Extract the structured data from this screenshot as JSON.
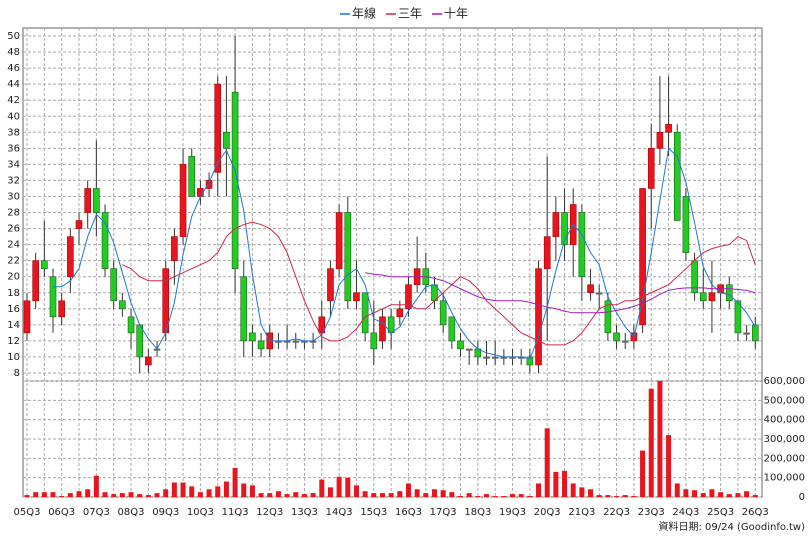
{
  "chart_data": {
    "type": "candlestick",
    "legend": [
      "年線",
      "三年",
      "十年"
    ],
    "note": "資料日期: 09/24 (Goodinfo.tw)",
    "categories": [
      "05Q3",
      null,
      null,
      null,
      "06Q3",
      null,
      null,
      null,
      "07Q3",
      null,
      null,
      null,
      "08Q3",
      null,
      null,
      null,
      "09Q3",
      null,
      null,
      null,
      "10Q3",
      null,
      null,
      null,
      "11Q3",
      null,
      null,
      null,
      "12Q3",
      null,
      null,
      null,
      "13Q3",
      null,
      null,
      null,
      "14Q3",
      null,
      null,
      null,
      "15Q3",
      null,
      null,
      null,
      "16Q3",
      null,
      null,
      null,
      "17Q3",
      null,
      null,
      null,
      "18Q3",
      null,
      null,
      null,
      "19Q3",
      null,
      null,
      null,
      "20Q3",
      null,
      null,
      null,
      "21Q3",
      null,
      null,
      null,
      "22Q3",
      null,
      null,
      null,
      "23Q3",
      null,
      null,
      null,
      "24Q3",
      null,
      null,
      null,
      "25Q3",
      null,
      null,
      null,
      "26Q3"
    ],
    "open": [
      13,
      17,
      22,
      20,
      15,
      20,
      26,
      28,
      31,
      28,
      21,
      17,
      15,
      14,
      9,
      11,
      13,
      22,
      25,
      35,
      30,
      31,
      33,
      38,
      43,
      20,
      13,
      12,
      11,
      12,
      12,
      12,
      12,
      12,
      13,
      17,
      21,
      28,
      17,
      18,
      13,
      12,
      15,
      15,
      16,
      19,
      21,
      19,
      17,
      15,
      12,
      11,
      11,
      10,
      10,
      10,
      10,
      10,
      10,
      9,
      21,
      25,
      28,
      24,
      28,
      18,
      18,
      17,
      13,
      12,
      12,
      14,
      31,
      36,
      38,
      38,
      30,
      22,
      18,
      17,
      18,
      19,
      17,
      13,
      14
    ],
    "high": [
      18,
      23,
      27,
      21,
      18,
      26,
      28,
      32,
      37,
      29,
      22,
      18,
      16,
      14,
      11,
      12,
      22,
      26,
      36,
      36,
      32,
      33,
      45,
      45,
      50,
      22,
      14,
      13,
      14,
      13,
      14,
      13,
      12,
      13,
      17,
      22,
      29,
      30,
      22,
      18,
      17,
      16,
      16,
      17,
      20,
      25,
      23,
      20,
      18,
      15,
      13,
      11,
      12,
      12,
      12,
      11,
      11,
      11,
      11,
      22,
      35,
      30,
      31,
      31,
      29,
      21,
      19,
      18,
      14,
      13,
      14,
      31,
      39,
      45,
      45,
      39,
      31,
      23,
      21,
      22,
      19,
      20,
      17,
      14,
      15
    ],
    "low": [
      12,
      16,
      20,
      13,
      14,
      18,
      24,
      26,
      25,
      20,
      16,
      15,
      11,
      8,
      8,
      10,
      12,
      19,
      24,
      30,
      29,
      30,
      30,
      30,
      18,
      10,
      10,
      10,
      10,
      11,
      11,
      11,
      11,
      11,
      11,
      15,
      20,
      16,
      16,
      12,
      9,
      11,
      11,
      14,
      15,
      18,
      18,
      16,
      13,
      11,
      10,
      9,
      9,
      9,
      9,
      9,
      9,
      9,
      8,
      8,
      12,
      22,
      22,
      20,
      17,
      17,
      16,
      12,
      11,
      11,
      11,
      13,
      26,
      34,
      35,
      27,
      22,
      17,
      16,
      13,
      16,
      16,
      12,
      12,
      11
    ],
    "close": [
      17,
      22,
      21,
      15,
      17,
      25,
      27,
      31,
      28,
      21,
      17,
      16,
      13,
      10,
      10,
      11,
      21,
      25,
      34,
      30,
      31,
      32,
      44,
      36,
      21,
      12,
      12,
      11,
      13,
      12,
      12,
      12,
      12,
      12,
      15,
      21,
      28,
      17,
      18,
      13,
      11,
      15,
      13,
      16,
      19,
      21,
      19,
      17,
      14,
      12,
      11,
      11,
      10,
      10,
      10,
      10,
      10,
      10,
      9,
      21,
      25,
      28,
      24,
      29,
      20,
      19,
      18,
      13,
      12,
      12,
      13,
      31,
      36,
      38,
      39,
      27,
      23,
      18,
      17,
      18,
      19,
      17,
      13,
      13,
      12
    ],
    "volume": [
      10000,
      25000,
      25000,
      25000,
      5000,
      20000,
      30000,
      40000,
      110000,
      25000,
      15000,
      20000,
      25000,
      15000,
      10000,
      20000,
      40000,
      75000,
      75000,
      55000,
      25000,
      40000,
      55000,
      80000,
      150000,
      70000,
      60000,
      20000,
      20000,
      30000,
      15000,
      25000,
      15000,
      20000,
      90000,
      50000,
      105000,
      100000,
      60000,
      30000,
      20000,
      20000,
      20000,
      30000,
      70000,
      40000,
      20000,
      40000,
      35000,
      25000,
      5000,
      20000,
      5000,
      15000,
      5000,
      5000,
      15000,
      15000,
      5000,
      70000,
      355000,
      130000,
      135000,
      70000,
      50000,
      40000,
      10000,
      10000,
      5000,
      10000,
      5000,
      240000,
      560000,
      600000,
      320000,
      70000,
      40000,
      35000,
      20000,
      40000,
      25000,
      15000,
      20000,
      30000,
      10000
    ],
    "up_color": "#e8141e",
    "down_color": "#22cc22",
    "volume_color": "#e8141e",
    "series": [
      {
        "name": "年線",
        "color": "#1e78d2",
        "values": [
          null,
          null,
          null,
          18.75,
          18.75,
          19.5,
          21,
          25,
          27.75,
          26.75,
          24.25,
          20.5,
          16.75,
          14,
          12.25,
          11,
          13,
          16.75,
          22.75,
          27.5,
          30,
          31.75,
          34.25,
          35.75,
          33.25,
          28.25,
          20.25,
          14,
          12,
          12,
          12,
          12.25,
          12,
          12,
          12.75,
          15,
          19,
          20.25,
          21,
          19,
          14.75,
          14.25,
          13,
          13.75,
          15.75,
          17.25,
          18.75,
          19,
          17.75,
          15.5,
          13.5,
          12,
          11,
          10.5,
          10.25,
          10,
          10,
          10,
          9.75,
          12.5,
          16.25,
          20.75,
          24.5,
          26.5,
          25.25,
          23,
          21.5,
          17.5,
          15.5,
          13.75,
          12.5,
          17,
          23,
          29.5,
          36,
          35,
          31.75,
          26.75,
          21.25,
          19,
          18,
          17.75,
          16.75,
          15.5,
          13.75
        ]
      },
      {
        "name": "三年",
        "color": "#d2284b",
        "values": [
          null,
          null,
          null,
          null,
          null,
          null,
          null,
          null,
          null,
          null,
          null,
          21.5,
          21,
          20,
          19.5,
          19.5,
          19.5,
          20,
          20.5,
          21,
          21.5,
          22,
          23,
          25,
          26,
          26.5,
          26.8,
          26.5,
          26,
          25,
          23,
          20,
          17,
          14.5,
          12.5,
          12,
          12,
          12.5,
          13.5,
          15,
          15.5,
          16,
          16.5,
          16.5,
          16.5,
          16,
          16,
          17,
          18,
          19,
          20,
          19.5,
          18.5,
          17,
          16,
          15,
          14,
          13,
          12.5,
          12,
          11.5,
          11.5,
          11.5,
          12,
          13,
          14.5,
          16,
          16.5,
          16.5,
          17,
          17,
          17.5,
          18,
          18.5,
          19,
          20,
          21,
          22,
          23,
          23.5,
          23.8,
          24,
          25,
          24.5,
          21.5
        ]
      },
      {
        "name": "十年",
        "color": "#a01eb4",
        "values": [
          null,
          null,
          null,
          null,
          null,
          null,
          null,
          null,
          null,
          null,
          null,
          null,
          null,
          null,
          null,
          null,
          null,
          null,
          null,
          null,
          null,
          null,
          null,
          null,
          null,
          null,
          null,
          null,
          null,
          null,
          null,
          null,
          null,
          null,
          null,
          null,
          null,
          null,
          null,
          20.5,
          20.3,
          20.2,
          20,
          20,
          20,
          20,
          20,
          19.8,
          19.5,
          19,
          18.5,
          18,
          17.5,
          17.2,
          17,
          17,
          17,
          17,
          16.8,
          16.5,
          16.2,
          16,
          15.7,
          15.5,
          15.5,
          15.5,
          15.5,
          15.6,
          15.8,
          16,
          16.3,
          16.7,
          17.2,
          17.8,
          18.3,
          18.5,
          18.6,
          18.6,
          18.6,
          18.5,
          18.5,
          18.5,
          18.4,
          18.3,
          18
        ]
      }
    ],
    "ylim": [
      7,
      51
    ],
    "yticks": [
      8,
      10,
      12,
      14,
      16,
      18,
      20,
      22,
      24,
      26,
      28,
      30,
      32,
      34,
      36,
      38,
      40,
      42,
      44,
      46,
      48,
      50
    ],
    "y2lim": [
      0,
      600000
    ],
    "y2ticks": [
      0,
      {
        "value": 100000,
        "label": "100,000"
      },
      {
        "value": 200000,
        "label": "200,000"
      },
      {
        "value": 300000,
        "label": "300,000"
      },
      {
        "value": 400000,
        "label": "400,000"
      },
      {
        "value": 500000,
        "label": "500,000"
      },
      {
        "value": 600000,
        "label": "600,000"
      }
    ],
    "grid": true
  }
}
